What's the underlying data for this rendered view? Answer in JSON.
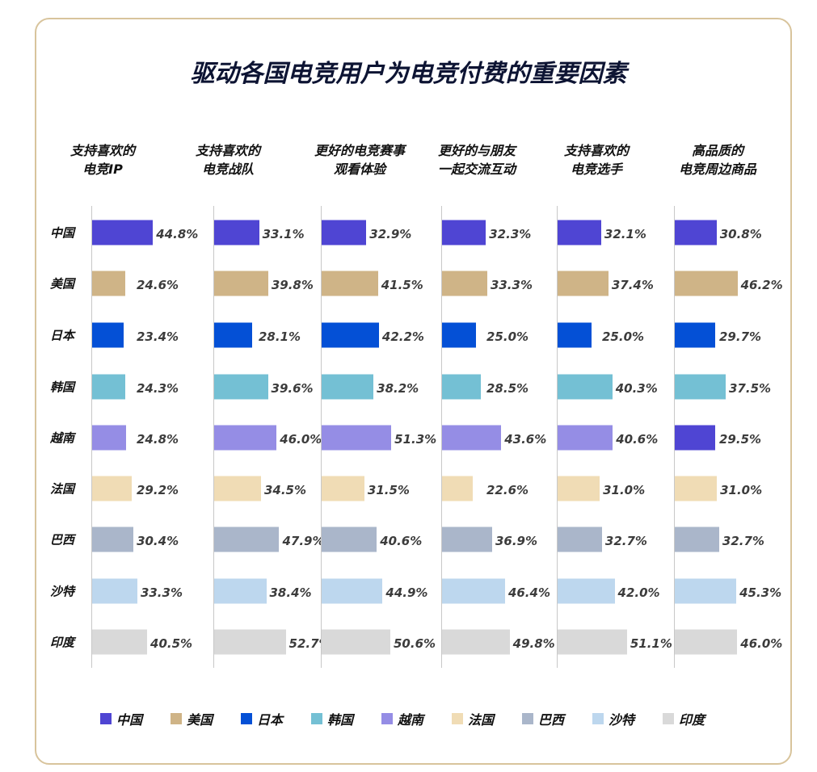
{
  "chart_data": {
    "type": "bar",
    "orientation": "horizontal",
    "title": "驱动各国电竞用户为电竞付费的重要因素",
    "categories": [
      "中国",
      "美国",
      "日本",
      "韩国",
      "越南",
      "法国",
      "巴西",
      "沙特",
      "印度"
    ],
    "colors": [
      "#4f45d3",
      "#cfb487",
      "#0450d6",
      "#74c0d4",
      "#958de5",
      "#f0dcb5",
      "#aab6ca",
      "#bdd7ee",
      "#d9d9d9"
    ],
    "series": [
      {
        "name": "支持喜欢的\n电竞IP",
        "label_lines": [
          "支持喜欢的",
          "电竞IP"
        ],
        "values": [
          44.8,
          24.6,
          23.4,
          24.3,
          24.8,
          29.2,
          30.4,
          33.3,
          40.5
        ],
        "labels": [
          "44.8%",
          "24.6%",
          "23.4%",
          "24.3%",
          "24.8%",
          "29.2%",
          "30.4%",
          "33.3%",
          "40.5%"
        ]
      },
      {
        "name": "支持喜欢的\n电竞战队",
        "label_lines": [
          "支持喜欢的",
          "电竞战队"
        ],
        "values": [
          33.1,
          39.8,
          28.1,
          39.6,
          46.0,
          34.5,
          47.9,
          38.4,
          52.7
        ],
        "labels": [
          "33.1%",
          "39.8%",
          "28.1%",
          "39.6%",
          "46.0%",
          "34.5%",
          "47.9%",
          "38.4%",
          "52.7%"
        ]
      },
      {
        "name": "更好的电竞赛事\n观看体验",
        "label_lines": [
          "更好的电竞赛事",
          "观看体验"
        ],
        "values": [
          32.9,
          41.5,
          42.2,
          38.2,
          51.3,
          31.5,
          40.6,
          44.9,
          50.6
        ],
        "labels": [
          "32.9%",
          "41.5%",
          "42.2%",
          "38.2%",
          "51.3%",
          "31.5%",
          "40.6%",
          "44.9%",
          "50.6%"
        ]
      },
      {
        "name": "更好的与朋友\n一起交流互动",
        "label_lines": [
          "更好的与朋友",
          "一起交流互动"
        ],
        "values": [
          32.3,
          33.3,
          25.0,
          28.5,
          43.6,
          22.6,
          36.9,
          46.4,
          49.8
        ],
        "labels": [
          "32.3%",
          "33.3%",
          "25.0%",
          "28.5%",
          "43.6%",
          "22.6%",
          "36.9%",
          "46.4%",
          "49.8%"
        ]
      },
      {
        "name": "支持喜欢的\n电竞选手",
        "label_lines": [
          "支持喜欢的",
          "电竞选手"
        ],
        "values": [
          32.1,
          37.4,
          25.0,
          40.3,
          40.6,
          31.0,
          32.7,
          42.0,
          51.1
        ],
        "labels": [
          "32.1%",
          "37.4%",
          "25.0%",
          "40.3%",
          "40.6%",
          "31.0%",
          "32.7%",
          "42.0%",
          "51.1%"
        ]
      },
      {
        "name": "高品质的\n电竞周边商品",
        "label_lines": [
          "高品质的",
          "电竞周边商品"
        ],
        "values": [
          30.8,
          46.2,
          29.7,
          37.5,
          29.5,
          31.0,
          32.7,
          45.3,
          46.0
        ],
        "labels": [
          "30.8%",
          "46.2%",
          "29.7%",
          "37.5%",
          "29.5%",
          "31.0%",
          "32.7%",
          "45.3%",
          "46.0%"
        ],
        "color_overrides": {
          "4": "#4f45d3"
        }
      }
    ],
    "unit": "%",
    "legend": {
      "position": "bottom",
      "entries": [
        "中国",
        "美国",
        "日本",
        "韩国",
        "越南",
        "法国",
        "巴西",
        "沙特",
        "印度"
      ]
    }
  }
}
